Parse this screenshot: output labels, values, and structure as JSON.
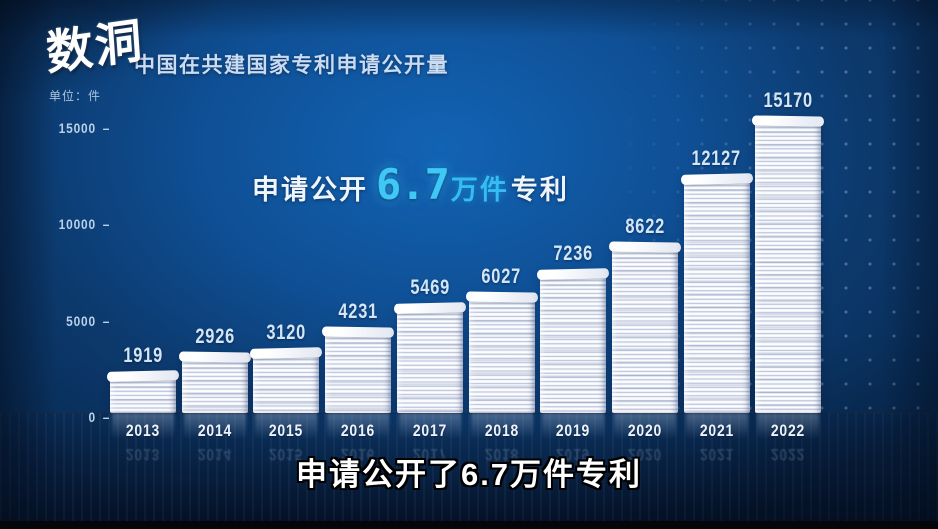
{
  "logo": {
    "text": "数洞"
  },
  "header": {
    "title": "中国在共建国家专利申请公开量",
    "unit": "单位：件"
  },
  "overlay": {
    "prefix": "申请公开",
    "value": "6.7",
    "unit": "万件",
    "suffix": "专利"
  },
  "caption": "申请公开了6.7万件专利",
  "colors": {
    "accent_cyan": "#3fc8f5",
    "value_label_blue": "#d3e6f7",
    "axis_label_blue": "#b7d2e9",
    "background_blue": "#0f5096"
  },
  "chart_data": {
    "type": "bar",
    "title": "中国在共建国家专利申请公开量",
    "ylabel": "单位：件",
    "xlabel": "",
    "categories": [
      "2013",
      "2014",
      "2015",
      "2016",
      "2017",
      "2018",
      "2019",
      "2020",
      "2021",
      "2022"
    ],
    "values": [
      1919,
      2926,
      3120,
      4231,
      5469,
      6027,
      7236,
      8622,
      12127,
      15170
    ],
    "yticks": [
      0,
      5000,
      10000,
      15000
    ],
    "ylim": [
      0,
      16000
    ],
    "grid": false,
    "legend_position": "none",
    "bar_style": "stacked-paper",
    "annotation": "申请公开 6.7万件专利"
  }
}
